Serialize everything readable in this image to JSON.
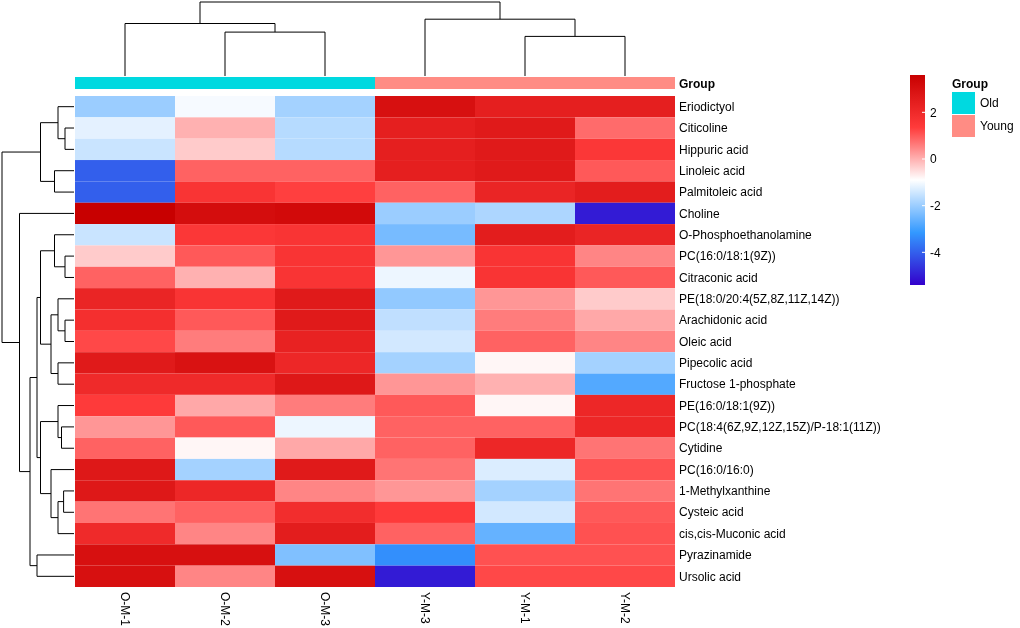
{
  "chart_data": {
    "type": "heatmap",
    "categories": [
      "O-M-1",
      "O-M-2",
      "O-M-3",
      "Y-M-3",
      "Y-M-1",
      "Y-M-2"
    ],
    "y_categories": [
      "Eriodictyol",
      "Citicoline",
      "Hippuric acid",
      "Linoleic acid",
      "Palmitoleic acid",
      "Choline",
      "O-Phosphoethanolamine",
      "PC(16:0/18:1(9Z))",
      "Citraconic acid",
      "PE(18:0/20:4(5Z,8Z,11Z,14Z))",
      "Arachidonic acid",
      "Oleic acid",
      "Pipecolic acid",
      "Fructose 1-phosphate",
      "PE(16:0/18:1(9Z))",
      "PC(18:4(6Z,9Z,12Z,15Z)/P-18:1(11Z))",
      "Cytidine",
      "PC(16:0/16:0)",
      "1-Methylxanthine",
      "Cysteic acid",
      "cis,cis-Muconic acid",
      "Pyrazinamide",
      "Ursolic acid"
    ],
    "cells": [
      [
        -2.0,
        -1.0,
        -1.9,
        3.0,
        2.4,
        2.4
      ],
      [
        -1.2,
        0.0,
        -1.7,
        2.4,
        2.6,
        0.8
      ],
      [
        -1.5,
        -0.3,
        -1.7,
        2.4,
        2.6,
        1.5
      ],
      [
        -4.0,
        0.9,
        0.9,
        2.4,
        2.6,
        1.0
      ],
      [
        -4.0,
        1.6,
        1.3,
        0.9,
        2.2,
        2.5
      ],
      [
        3.6,
        3.1,
        3.2,
        -2.0,
        -1.8,
        -5.0
      ],
      [
        -1.5,
        1.5,
        1.6,
        -2.4,
        2.5,
        2.2
      ],
      [
        -0.3,
        1.0,
        1.6,
        0.3,
        1.6,
        0.5
      ],
      [
        0.9,
        0.0,
        1.6,
        -1.1,
        1.6,
        1.0
      ],
      [
        2.2,
        1.6,
        2.6,
        -2.1,
        0.3,
        -0.3
      ],
      [
        1.8,
        1.0,
        2.6,
        -1.6,
        0.6,
        0.1
      ],
      [
        1.2,
        0.6,
        2.3,
        -1.4,
        0.9,
        0.5
      ],
      [
        2.6,
        2.9,
        2.1,
        -1.9,
        -0.8,
        -1.9
      ],
      [
        2.0,
        2.0,
        2.7,
        0.3,
        0.0,
        -2.8
      ],
      [
        1.4,
        0.1,
        0.6,
        1.0,
        -0.8,
        2.1
      ],
      [
        0.3,
        1.0,
        -1.1,
        0.9,
        0.9,
        2.1
      ],
      [
        0.9,
        -0.8,
        0.1,
        0.9,
        2.1,
        0.7
      ],
      [
        2.7,
        -1.9,
        2.6,
        0.7,
        -1.3,
        1.1
      ],
      [
        2.7,
        2.1,
        0.5,
        0.3,
        -1.9,
        0.7
      ],
      [
        0.7,
        0.9,
        1.9,
        1.4,
        -1.4,
        1.0
      ],
      [
        2.0,
        0.5,
        2.5,
        0.9,
        -2.6,
        1.1
      ],
      [
        3.0,
        3.0,
        -2.3,
        -3.3,
        1.1,
        1.1
      ],
      [
        3.0,
        0.5,
        3.0,
        -5.0,
        1.2,
        1.2
      ]
    ],
    "clim": [
      -5.4,
      3.6
    ],
    "cticks": [
      -4,
      -2,
      0,
      2
    ],
    "legend_title": "Group",
    "annotations": [
      "Old",
      "Young"
    ]
  }
}
